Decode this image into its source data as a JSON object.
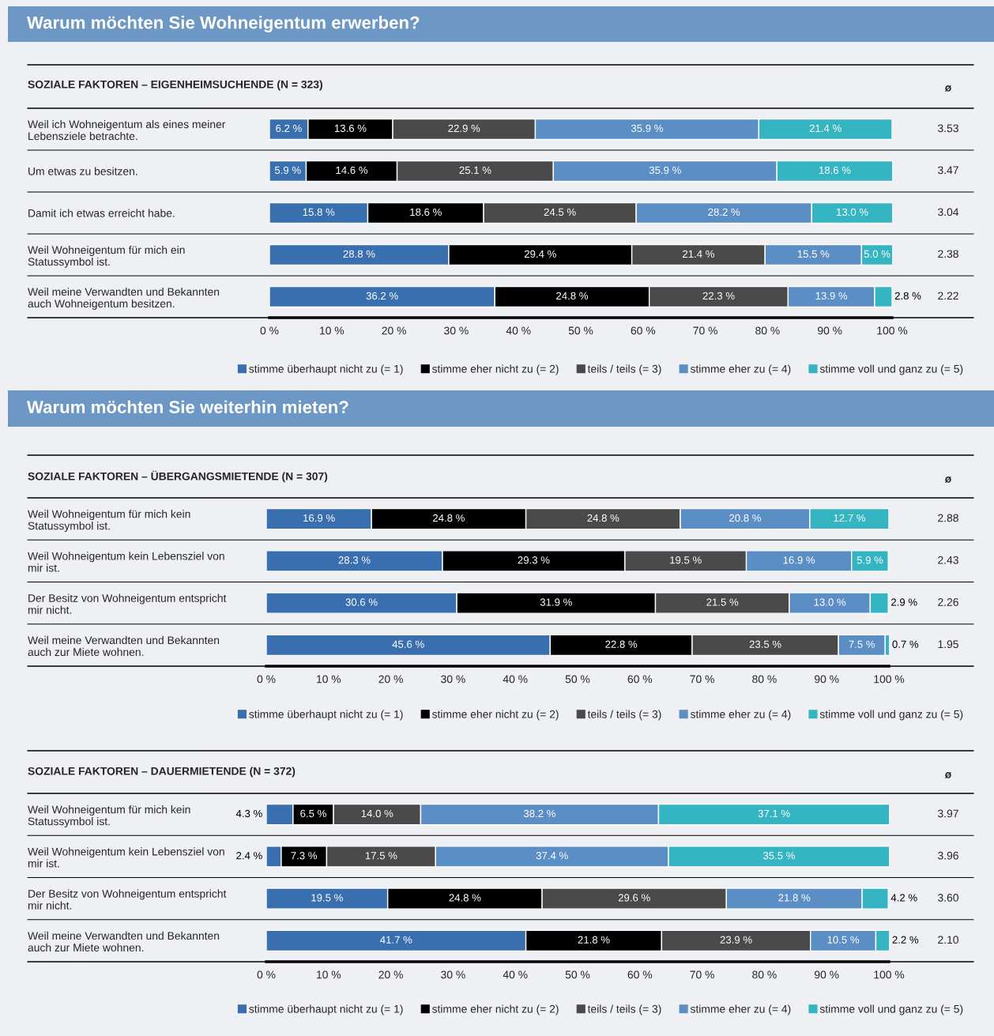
{
  "chart_data": [
    {
      "type": "bar",
      "orientation": "horizontal",
      "stacked": true,
      "title": "Warum möchten Sie Wohneigentum erwerben?",
      "subtitle": "SOZIALE FAKTOREN – EIGENHEIMSUCHENDE (N = 323)",
      "categories": [
        "Weil ich Wohneigentum als eines meiner\nLebensziele betrachte.",
        "Um etwas zu besitzen.",
        "Damit ich etwas erreicht habe.",
        "Weil Wohneigentum für mich ein\nStatussymbol ist.",
        "Weil meine Verwandten und Bekannten\nauch Wohneigentum besitzen."
      ],
      "series": [
        {
          "name": "stimme überhaupt nicht zu (= 1)",
          "color": "#3a6faf",
          "values": [
            6.2,
            5.9,
            15.8,
            28.8,
            36.2
          ],
          "value_labels": [
            "6.2 %",
            "5.9 %",
            "15.8 %",
            "28.8 %",
            "36.2 %"
          ]
        },
        {
          "name": "stimme eher nicht zu (= 2)",
          "color": "#000000",
          "values": [
            13.6,
            14.6,
            18.6,
            29.4,
            24.8
          ],
          "value_labels": [
            "13.6 %",
            "14.6 %",
            "18.6 %",
            "29.4 %",
            "24.8 %"
          ]
        },
        {
          "name": "teils / teils (= 3)",
          "color": "#4a4a4a",
          "values": [
            22.9,
            25.1,
            24.5,
            21.4,
            22.3
          ],
          "value_labels": [
            "22.9 %",
            "25.1 %",
            "24.5 %",
            "21.4 %",
            "22.3 %"
          ]
        },
        {
          "name": "stimme eher zu (= 4)",
          "color": "#5b8ec4",
          "values": [
            35.9,
            35.9,
            28.2,
            15.5,
            13.9
          ],
          "value_labels": [
            "35.9 %",
            "35.9 %",
            "28.2 %",
            "15.5 %",
            "13.9 %"
          ]
        },
        {
          "name": "stimme voll und ganz zu (= 5)",
          "color": "#35b4c1",
          "values": [
            21.4,
            18.6,
            13.0,
            5.0,
            2.8
          ],
          "value_labels": [
            "21.4 %",
            "18.6 %",
            "13.0 %",
            "5.0 %",
            "2.8 %"
          ]
        }
      ],
      "annotations": [
        "ø",
        "3.53",
        "3.47",
        "3.04",
        "2.38",
        "2.22"
      ],
      "xlim": [
        0,
        100
      ],
      "xticks": [
        {
          "value": 0,
          "label": "0 %"
        },
        {
          "value": 10,
          "label": "10 %"
        },
        {
          "value": 20,
          "label": "20 %"
        },
        {
          "value": 30,
          "label": "30 %"
        },
        {
          "value": 40,
          "label": "40 %"
        },
        {
          "value": 50,
          "label": "50 %"
        },
        {
          "value": 60,
          "label": "60 %"
        },
        {
          "value": 70,
          "label": "70 %"
        },
        {
          "value": 80,
          "label": "80 %"
        },
        {
          "value": 90,
          "label": "90 %"
        },
        {
          "value": 100,
          "label": "100 %"
        }
      ],
      "legend": "bottom",
      "grid": false
    },
    {
      "type": "bar",
      "orientation": "horizontal",
      "stacked": true,
      "title": "Warum möchten Sie weiterhin mieten?",
      "subtitle": "SOZIALE FAKTOREN – ÜBERGANGSMIETENDE (N = 307)",
      "categories": [
        "Weil Wohneigentum für mich kein\nStatussymbol ist.",
        "Weil Wohneigentum kein Lebensziel von\nmir ist.",
        "Der Besitz von Wohneigentum entspricht\nmir nicht.",
        "Weil meine Verwandten und Bekannten\nauch zur Miete wohnen."
      ],
      "series": [
        {
          "name": "stimme überhaupt nicht zu (= 1)",
          "color": "#3a6faf",
          "values": [
            16.9,
            28.3,
            30.6,
            45.6
          ],
          "value_labels": [
            "16.9 %",
            "28.3 %",
            "30.6 %",
            "45.6 %"
          ]
        },
        {
          "name": "stimme eher nicht zu (= 2)",
          "color": "#000000",
          "values": [
            24.8,
            29.3,
            31.9,
            22.8
          ],
          "value_labels": [
            "24.8 %",
            "29.3 %",
            "31.9 %",
            "22.8 %"
          ]
        },
        {
          "name": "teils / teils (= 3)",
          "color": "#4a4a4a",
          "values": [
            24.8,
            19.5,
            21.5,
            23.5
          ],
          "value_labels": [
            "24.8 %",
            "19.5 %",
            "21.5 %",
            "23.5 %"
          ]
        },
        {
          "name": "stimme eher zu (= 4)",
          "color": "#5b8ec4",
          "values": [
            20.8,
            16.9,
            13.0,
            7.5
          ],
          "value_labels": [
            "20.8 %",
            "16.9 %",
            "13.0 %",
            "7.5 %"
          ]
        },
        {
          "name": "stimme voll und ganz zu (= 5)",
          "color": "#35b4c1",
          "values": [
            12.7,
            5.9,
            2.9,
            0.7
          ],
          "value_labels": [
            "12.7 %",
            "5.9 %",
            "2.9 %",
            "0.7 %"
          ]
        }
      ],
      "annotations": [
        "ø",
        "2.88",
        "2.43",
        "2.26",
        "1.95"
      ],
      "xlim": [
        0,
        100
      ],
      "xticks": [
        {
          "value": 0,
          "label": "0 %"
        },
        {
          "value": 10,
          "label": "10 %"
        },
        {
          "value": 20,
          "label": "20 %"
        },
        {
          "value": 30,
          "label": "30 %"
        },
        {
          "value": 40,
          "label": "40 %"
        },
        {
          "value": 50,
          "label": "50 %"
        },
        {
          "value": 60,
          "label": "60 %"
        },
        {
          "value": 70,
          "label": "70 %"
        },
        {
          "value": 80,
          "label": "80 %"
        },
        {
          "value": 90,
          "label": "90 %"
        },
        {
          "value": 100,
          "label": "100 %"
        }
      ],
      "legend": "bottom",
      "grid": false
    },
    {
      "type": "bar",
      "orientation": "horizontal",
      "stacked": true,
      "subtitle": "SOZIALE FAKTOREN – DAUERMIETENDE (N = 372)",
      "categories": [
        "Weil Wohneigentum für mich kein\nStatussymbol ist.",
        "Weil Wohneigentum kein Lebensziel von\nmir ist.",
        "Der Besitz von Wohneigentum entspricht\nmir nicht.",
        "Weil meine Verwandten und Bekannten\nauch zur Miete wohnen."
      ],
      "series": [
        {
          "name": "stimme überhaupt nicht zu (= 1)",
          "color": "#3a6faf",
          "values": [
            4.3,
            2.4,
            19.5,
            41.7
          ],
          "value_labels": [
            "4.3 %",
            "2.4 %",
            "19.5 %",
            "41.7 %"
          ]
        },
        {
          "name": "stimme eher nicht zu (= 2)",
          "color": "#000000",
          "values": [
            6.5,
            7.3,
            24.8,
            21.8
          ],
          "value_labels": [
            "6.5 %",
            "7.3 %",
            "24.8 %",
            "21.8 %"
          ]
        },
        {
          "name": "teils / teils (= 3)",
          "color": "#4a4a4a",
          "values": [
            14.0,
            17.5,
            29.6,
            23.9
          ],
          "value_labels": [
            "14.0 %",
            "17.5 %",
            "29.6 %",
            "23.9 %"
          ]
        },
        {
          "name": "stimme eher zu (= 4)",
          "color": "#5b8ec4",
          "values": [
            38.2,
            37.4,
            21.8,
            10.5
          ],
          "value_labels": [
            "38.2 %",
            "37.4 %",
            "21.8 %",
            "10.5 %"
          ]
        },
        {
          "name": "stimme voll und ganz zu (= 5)",
          "color": "#35b4c1",
          "values": [
            37.1,
            35.5,
            4.2,
            2.2
          ],
          "value_labels": [
            "37.1 %",
            "35.5 %",
            "4.2 %",
            "2.2 %"
          ]
        }
      ],
      "annotations": [
        "ø",
        "3.97",
        "3.96",
        "3.60",
        "2.10"
      ],
      "xlim": [
        0,
        100
      ],
      "xticks": [
        {
          "value": 0,
          "label": "0 %"
        },
        {
          "value": 10,
          "label": "10 %"
        },
        {
          "value": 20,
          "label": "20 %"
        },
        {
          "value": 30,
          "label": "30 %"
        },
        {
          "value": 40,
          "label": "40 %"
        },
        {
          "value": 50,
          "label": "50 %"
        },
        {
          "value": 60,
          "label": "60 %"
        },
        {
          "value": 70,
          "label": "70 %"
        },
        {
          "value": 80,
          "label": "80 %"
        },
        {
          "value": 90,
          "label": "90 %"
        },
        {
          "value": 100,
          "label": "100 %"
        }
      ],
      "legend": "bottom",
      "grid": false
    }
  ]
}
